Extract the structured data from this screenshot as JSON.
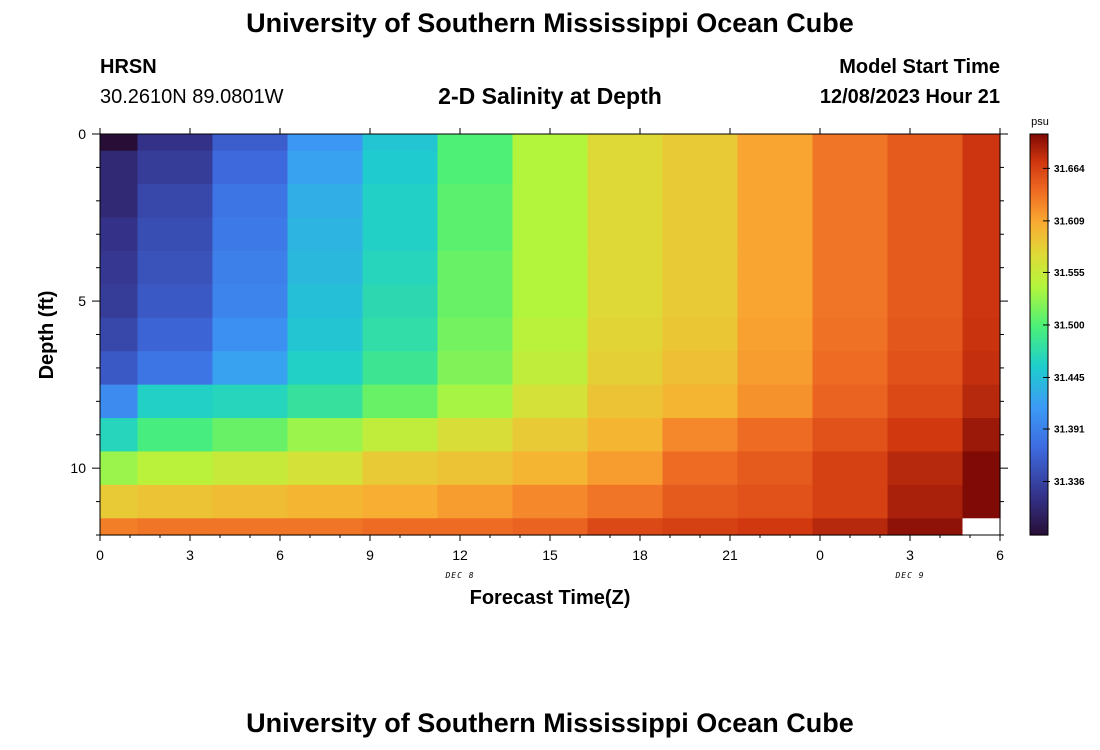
{
  "header": {
    "title": "University of Southern Mississippi Ocean Cube",
    "station_name": "HRSN",
    "station_coords": "30.2610N  89.0801W",
    "chart_title": "2-D Salinity at Depth",
    "start_label": "Model Start Time",
    "start_value": "12/08/2023 Hour 21"
  },
  "footer": {
    "title": "University of Southern Mississippi Ocean Cube"
  },
  "chart_data": {
    "type": "heatmap",
    "title": "2-D Salinity at Depth",
    "xlabel": "Forecast Time(Z)",
    "ylabel": "Depth (ft)",
    "x_ticks": [
      "0",
      "3",
      "6",
      "9",
      "12",
      "15",
      "18",
      "21",
      "0",
      "3",
      "6"
    ],
    "x_tick_hours": [
      0,
      3,
      6,
      9,
      12,
      15,
      18,
      21,
      24,
      27,
      30
    ],
    "xlim": [
      0,
      30
    ],
    "date_labels": [
      {
        "text": "DEC 8",
        "hour": 12
      },
      {
        "text": "DEC 9",
        "hour": 27
      }
    ],
    "y_ticks": [
      "0",
      "5",
      "10"
    ],
    "y_tick_values": [
      0,
      5,
      10
    ],
    "ylim": [
      0,
      12
    ],
    "colorbar": {
      "unit": "psu",
      "min": 31.28,
      "max": 31.7,
      "ticks": [
        "31.664",
        "31.609",
        "31.555",
        "31.500",
        "31.445",
        "31.391",
        "31.336"
      ],
      "tick_values": [
        31.664,
        31.609,
        31.555,
        31.5,
        31.445,
        31.391,
        31.336
      ]
    },
    "column_hours": [
      0,
      1.25,
      3.75,
      6.25,
      8.75,
      11.25,
      13.75,
      16.25,
      18.75,
      21.25,
      23.75,
      26.25,
      28.75,
      30
    ],
    "row_depths": [
      0,
      0.5,
      1.5,
      2.5,
      3.5,
      4.5,
      5.5,
      6.5,
      7.5,
      8.5,
      9.5,
      10.5,
      11.5,
      12
    ],
    "values": [
      [
        31.26,
        31.32,
        31.36,
        31.41,
        31.45,
        31.5,
        31.54,
        31.575,
        31.585,
        31.61,
        31.635,
        31.65,
        31.672
      ],
      [
        31.31,
        31.33,
        31.37,
        31.42,
        31.455,
        31.5,
        31.54,
        31.575,
        31.585,
        31.61,
        31.635,
        31.65,
        31.672
      ],
      [
        31.31,
        31.34,
        31.38,
        31.43,
        31.46,
        31.505,
        31.54,
        31.575,
        31.585,
        31.61,
        31.635,
        31.65,
        31.672
      ],
      [
        31.32,
        31.345,
        31.385,
        31.435,
        31.46,
        31.505,
        31.54,
        31.575,
        31.585,
        31.61,
        31.635,
        31.65,
        31.672
      ],
      [
        31.325,
        31.35,
        31.39,
        31.44,
        31.465,
        31.51,
        31.54,
        31.575,
        31.585,
        31.61,
        31.635,
        31.65,
        31.672
      ],
      [
        31.33,
        31.355,
        31.395,
        31.445,
        31.47,
        31.51,
        31.54,
        31.575,
        31.585,
        31.61,
        31.635,
        31.65,
        31.672
      ],
      [
        31.34,
        31.365,
        31.405,
        31.45,
        31.475,
        31.515,
        31.545,
        31.578,
        31.588,
        31.612,
        31.637,
        31.652,
        31.673
      ],
      [
        31.355,
        31.38,
        31.42,
        31.46,
        31.485,
        31.52,
        31.55,
        31.582,
        31.593,
        31.615,
        31.64,
        31.655,
        31.675
      ],
      [
        31.4,
        31.46,
        31.465,
        31.48,
        31.51,
        31.535,
        31.565,
        31.59,
        31.6,
        31.62,
        31.645,
        31.66,
        31.68
      ],
      [
        31.465,
        31.495,
        31.51,
        31.53,
        31.55,
        31.57,
        31.585,
        31.6,
        31.625,
        31.64,
        31.655,
        31.67,
        31.69
      ],
      [
        31.53,
        31.545,
        31.555,
        31.565,
        31.585,
        31.59,
        31.6,
        31.615,
        31.64,
        31.65,
        31.665,
        31.68,
        31.705
      ],
      [
        31.585,
        31.59,
        31.595,
        31.6,
        31.605,
        31.615,
        31.625,
        31.635,
        31.65,
        31.655,
        31.665,
        31.685,
        31.72
      ],
      [
        31.63,
        31.635,
        31.635,
        31.635,
        31.64,
        31.64,
        31.645,
        31.66,
        31.665,
        31.67,
        31.68,
        31.695,
        null
      ]
    ]
  }
}
